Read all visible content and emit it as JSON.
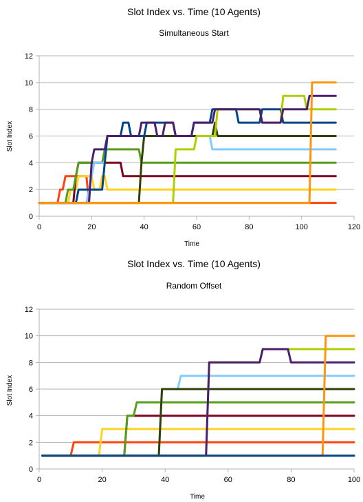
{
  "chart_data": [
    {
      "type": "line",
      "title": "Slot Index vs. Time (10 Agents)",
      "subtitle": "Simultaneous Start",
      "xlabel": "Time",
      "ylabel": "Slot Index",
      "xlim": [
        0,
        120
      ],
      "ylim": [
        0,
        12
      ],
      "xticks": [
        0,
        20,
        40,
        60,
        80,
        100,
        "120"
      ],
      "yticks": [
        0,
        2,
        4,
        6,
        8,
        10,
        12
      ],
      "grid": "horizontal",
      "series": [
        {
          "color": "#ff420e",
          "points": [
            [
              0,
              1
            ],
            [
              7,
              1
            ],
            [
              8,
              2
            ],
            [
              9,
              2
            ],
            [
              10,
              3
            ],
            [
              18,
              3
            ],
            [
              19,
              1
            ],
            [
              113,
              1
            ]
          ]
        },
        {
          "color": "#ffd320",
          "points": [
            [
              0,
              1
            ],
            [
              11,
              1
            ],
            [
              12,
              2
            ],
            [
              14,
              2
            ],
            [
              15,
              3
            ],
            [
              20,
              3
            ],
            [
              21,
              2
            ],
            [
              23,
              2
            ],
            [
              24,
              3
            ],
            [
              25,
              3
            ],
            [
              26,
              2
            ],
            [
              113,
              2
            ]
          ]
        },
        {
          "color": "#7e0021",
          "points": [
            [
              0,
              1
            ],
            [
              13,
              1
            ],
            [
              14,
              3
            ],
            [
              15,
              4
            ],
            [
              31,
              4
            ],
            [
              32,
              3
            ],
            [
              113,
              3
            ]
          ]
        },
        {
          "color": "#579d1c",
          "points": [
            [
              0,
              1
            ],
            [
              10,
              1
            ],
            [
              11,
              2
            ],
            [
              13,
              2
            ],
            [
              14,
              3
            ],
            [
              15,
              4
            ],
            [
              24,
              4
            ],
            [
              25,
              5
            ],
            [
              38,
              5
            ],
            [
              39,
              4
            ],
            [
              113,
              4
            ]
          ]
        },
        {
          "color": "#83caff",
          "points": [
            [
              0,
              1
            ],
            [
              18,
              1
            ],
            [
              19,
              2
            ],
            [
              20,
              3
            ],
            [
              21,
              4
            ],
            [
              25,
              4
            ],
            [
              26,
              6
            ],
            [
              65,
              6
            ],
            [
              66,
              5
            ],
            [
              113,
              5
            ]
          ]
        },
        {
          "color": "#314004",
          "points": [
            [
              0,
              1
            ],
            [
              38,
              1
            ],
            [
              39,
              4
            ],
            [
              40,
              6
            ],
            [
              66,
              6
            ],
            [
              67,
              7
            ],
            [
              68,
              6
            ],
            [
              113,
              6
            ]
          ]
        },
        {
          "color": "#004586",
          "points": [
            [
              0,
              1
            ],
            [
              14,
              1
            ],
            [
              15,
              2
            ],
            [
              24,
              2
            ],
            [
              25,
              4
            ],
            [
              26,
              6
            ],
            [
              31,
              6
            ],
            [
              32,
              7
            ],
            [
              34,
              7
            ],
            [
              35,
              6
            ],
            [
              40,
              6
            ],
            [
              41,
              7
            ],
            [
              51,
              7
            ],
            [
              52,
              6
            ],
            [
              58,
              6
            ],
            [
              59,
              7
            ],
            [
              65,
              7
            ],
            [
              66,
              8
            ],
            [
              75,
              8
            ],
            [
              76,
              7
            ],
            [
              84,
              7
            ],
            [
              85,
              8
            ],
            [
              92,
              8
            ],
            [
              93,
              7
            ],
            [
              113,
              7
            ]
          ]
        },
        {
          "color": "#aecf00",
          "points": [
            [
              0,
              1
            ],
            [
              51,
              1
            ],
            [
              52,
              5
            ],
            [
              59,
              5
            ],
            [
              60,
              6
            ],
            [
              67,
              6
            ],
            [
              68,
              8
            ],
            [
              84,
              8
            ],
            [
              85,
              7
            ],
            [
              92,
              7
            ],
            [
              93,
              9
            ],
            [
              101,
              9
            ],
            [
              102,
              8
            ],
            [
              113,
              8
            ]
          ]
        },
        {
          "color": "#4b1f6f",
          "points": [
            [
              0,
              1
            ],
            [
              19,
              1
            ],
            [
              20,
              4
            ],
            [
              21,
              5
            ],
            [
              25,
              5
            ],
            [
              26,
              6
            ],
            [
              38,
              6
            ],
            [
              39,
              7
            ],
            [
              44,
              7
            ],
            [
              45,
              6
            ],
            [
              47,
              6
            ],
            [
              48,
              7
            ],
            [
              51,
              7
            ],
            [
              52,
              6
            ],
            [
              58,
              6
            ],
            [
              59,
              7
            ],
            [
              66,
              7
            ],
            [
              67,
              8
            ],
            [
              84,
              8
            ],
            [
              85,
              7
            ],
            [
              92,
              7
            ],
            [
              93,
              8
            ],
            [
              102,
              8
            ],
            [
              103,
              9
            ],
            [
              113,
              9
            ]
          ]
        },
        {
          "color": "#ff950e",
          "points": [
            [
              0,
              1
            ],
            [
              103,
              1
            ],
            [
              104,
              10
            ],
            [
              113,
              10
            ]
          ]
        }
      ]
    },
    {
      "type": "line",
      "title": "Slot Index vs. Time (10 Agents)",
      "subtitle": "Random Offset",
      "xlabel": "Time",
      "ylabel": "Slot Index",
      "xlim": [
        0,
        100
      ],
      "ylim": [
        0,
        12
      ],
      "xticks": [
        0,
        20,
        40,
        60,
        80,
        100
      ],
      "yticks": [
        0,
        2,
        4,
        6,
        8,
        10,
        12
      ],
      "grid": "horizontal",
      "series": [
        {
          "color": "#ff420e",
          "points": [
            [
              1,
              1
            ],
            [
              10,
              1
            ],
            [
              11,
              2
            ],
            [
              100,
              2
            ]
          ]
        },
        {
          "color": "#ffd320",
          "points": [
            [
              1,
              1
            ],
            [
              19,
              1
            ],
            [
              20,
              3
            ],
            [
              100,
              3
            ]
          ]
        },
        {
          "color": "#7e0021",
          "points": [
            [
              1,
              1
            ],
            [
              27,
              1
            ],
            [
              28,
              4
            ],
            [
              100,
              4
            ]
          ]
        },
        {
          "color": "#579d1c",
          "points": [
            [
              1,
              1
            ],
            [
              27,
              1
            ],
            [
              28,
              4
            ],
            [
              30,
              4
            ],
            [
              31,
              5
            ],
            [
              100,
              5
            ]
          ]
        },
        {
          "color": "#83caff",
          "points": [
            [
              1,
              1
            ],
            [
              38,
              1
            ],
            [
              39,
              6
            ],
            [
              44,
              6
            ],
            [
              45,
              7
            ],
            [
              100,
              7
            ]
          ]
        },
        {
          "color": "#314004",
          "points": [
            [
              1,
              1
            ],
            [
              38,
              1
            ],
            [
              39,
              6
            ],
            [
              100,
              6
            ]
          ]
        },
        {
          "color": "#aecf00",
          "points": [
            [
              1,
              1
            ],
            [
              53,
              1
            ],
            [
              54,
              8
            ],
            [
              70,
              8
            ],
            [
              71,
              9
            ],
            [
              100,
              9
            ]
          ]
        },
        {
          "color": "#4b1f6f",
          "points": [
            [
              1,
              1
            ],
            [
              53,
              1
            ],
            [
              54,
              8
            ],
            [
              70,
              8
            ],
            [
              71,
              9
            ],
            [
              79,
              9
            ],
            [
              80,
              8
            ],
            [
              100,
              8
            ]
          ]
        },
        {
          "color": "#ff950e",
          "points": [
            [
              1,
              1
            ],
            [
              90,
              1
            ],
            [
              91,
              10
            ],
            [
              100,
              10
            ]
          ]
        },
        {
          "color": "#004586",
          "points": [
            [
              1,
              1
            ],
            [
              100,
              1
            ]
          ]
        }
      ]
    }
  ]
}
